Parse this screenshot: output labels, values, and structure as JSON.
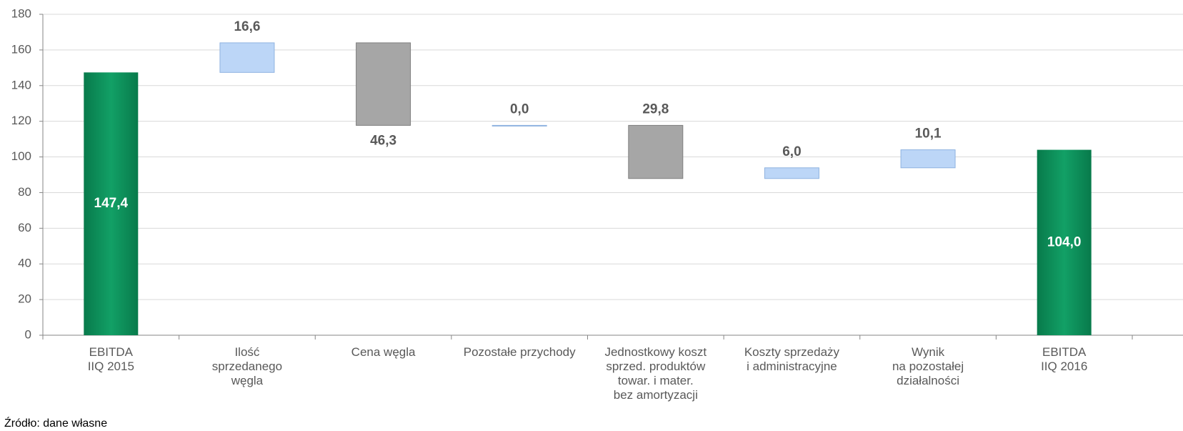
{
  "chart_data": {
    "type": "waterfall",
    "categories": [
      [
        "EBITDA",
        "IIQ 2015"
      ],
      [
        "Ilość",
        "sprzedanego",
        "węgla"
      ],
      [
        "Cena węgla"
      ],
      [
        "Pozostałe przychody"
      ],
      [
        "Jednostkowy koszt",
        "sprzed. produktów",
        "towar. i mater.",
        "bez amortyzacji"
      ],
      [
        "Koszty sprzedaży",
        "i administracyjne"
      ],
      [
        "Wynik",
        "na pozostałej",
        "działalności"
      ],
      [
        "EBITDA",
        "IIQ 2016"
      ]
    ],
    "values": [
      147.4,
      16.6,
      -46.3,
      0.0,
      -29.8,
      6.0,
      10.1,
      104.0
    ],
    "value_labels": [
      "147,4",
      "16,6",
      "46,3",
      "0,0",
      "29,8",
      "6,0",
      "10,1",
      "104,0"
    ],
    "measure": [
      "total",
      "relative",
      "relative",
      "relative",
      "relative",
      "relative",
      "relative",
      "total"
    ],
    "label_positions": [
      "inside",
      "above",
      "below",
      "above",
      "above",
      "above",
      "above",
      "inside"
    ],
    "colors": {
      "total": "#0b8a57",
      "increase": "#bcd6f7",
      "decrease": "#a6a6a6"
    },
    "ylim": [
      0,
      180
    ],
    "yticks": [
      0,
      20,
      40,
      60,
      80,
      100,
      120,
      140,
      160,
      180
    ],
    "grid": true,
    "source": "Źródło: dane własne"
  }
}
